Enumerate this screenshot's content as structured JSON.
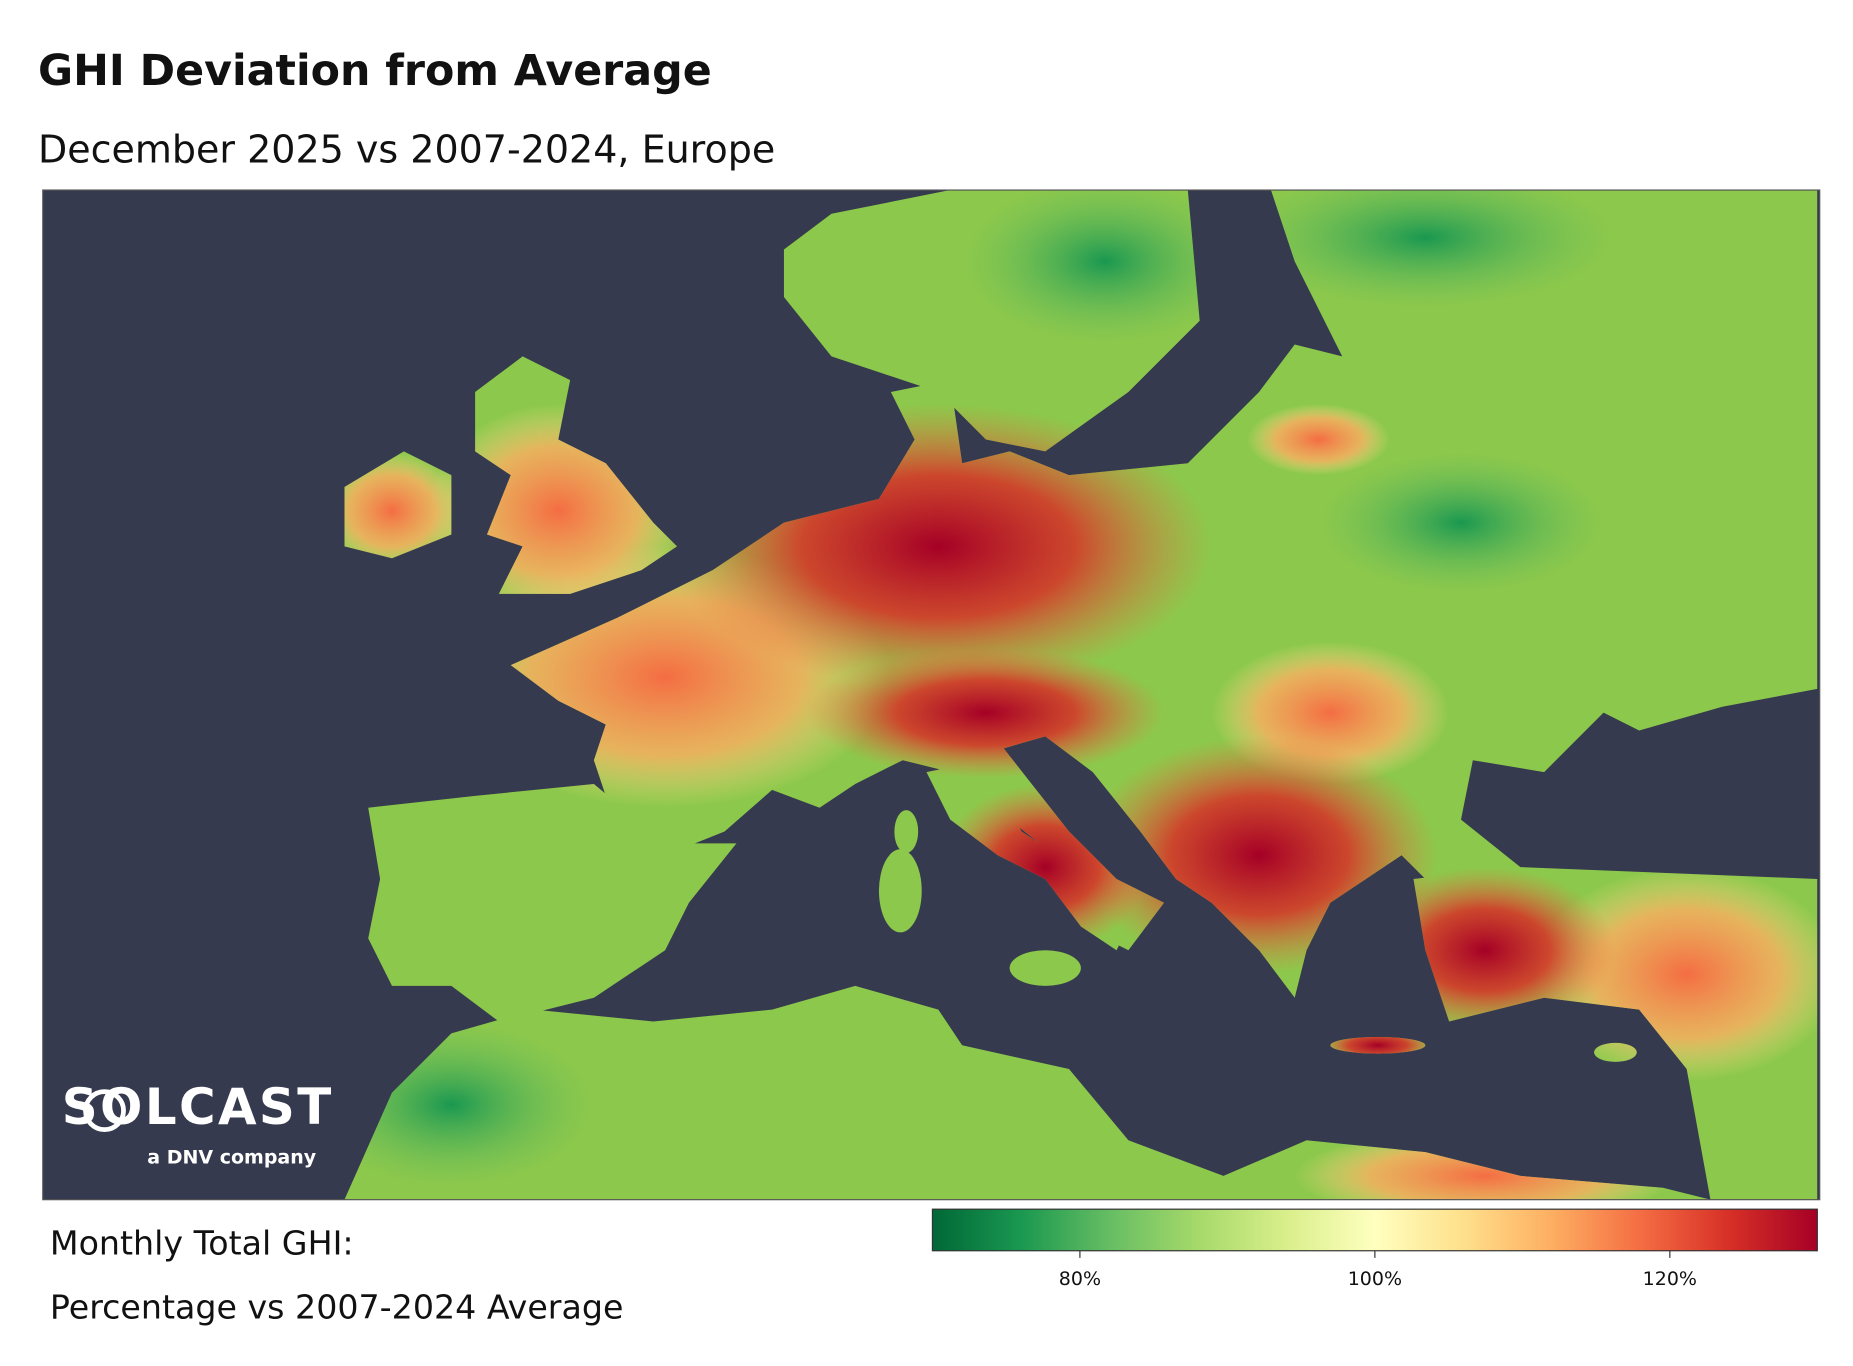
{
  "title": "GHI Deviation from Average",
  "subtitle": "December 2025 vs 2007-2024, Europe",
  "logo": {
    "name": "SOLCAST",
    "tagline": "a DNV company"
  },
  "legend": {
    "title": "Monthly Total GHI:",
    "subtitle": "Percentage vs 2007-2024 Average",
    "lim": [
      70,
      130
    ],
    "ticks": [
      {
        "value": 80,
        "label": "80%"
      },
      {
        "value": 100,
        "label": "100%"
      },
      {
        "value": 120,
        "label": "120%"
      }
    ],
    "colors": [
      "#006837",
      "#1a9850",
      "#66bd63",
      "#a6d96a",
      "#d9ef8b",
      "#ffffbf",
      "#fee08b",
      "#fdae61",
      "#f46d43",
      "#d73027",
      "#a50026"
    ]
  }
}
